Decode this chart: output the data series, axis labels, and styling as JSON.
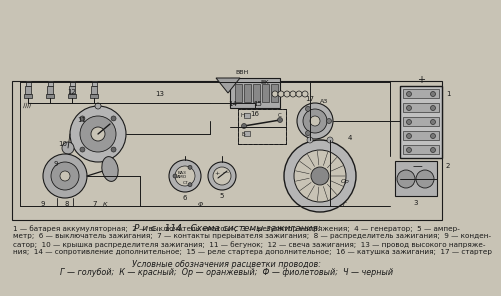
{
  "background_color": "#c8c3b5",
  "page_bg": "#c8c3b5",
  "dark": "#1a1a1a",
  "title": "Р и с . 114.  Схема системы зажигания:",
  "caption_lines": [
    "1 — батарея аккумуляторная;  2 — выключатель «массы»;  3 — регулятор напряжения;  4 — генератор;  5 — ампер-",
    "метр;  6 — выключатель зажигания;  7 — контакты прерывателя зажигания;  8 — распределитель зажигания;  9 — конден-",
    "сатор;  10 — крышка распределителя зажигания;  11 — бегунок;  12 — свеча зажигания;  13 — провод высокого напряже-",
    "ния;  14 — сопротивление дополнительное;  15 — реле стартера дополнительное;  16 — катушка зажигания;  17 — стартер"
  ],
  "legend_title": "Условные обозначения расцветки проводов:",
  "legend_line": "Г — голубой;  К — красный;  Ор — оранжевый;  Ф — фиолетовый;  Ч — черный",
  "caption_fontsize": 5.2,
  "title_fontsize": 6.5,
  "legend_fontsize": 5.8
}
